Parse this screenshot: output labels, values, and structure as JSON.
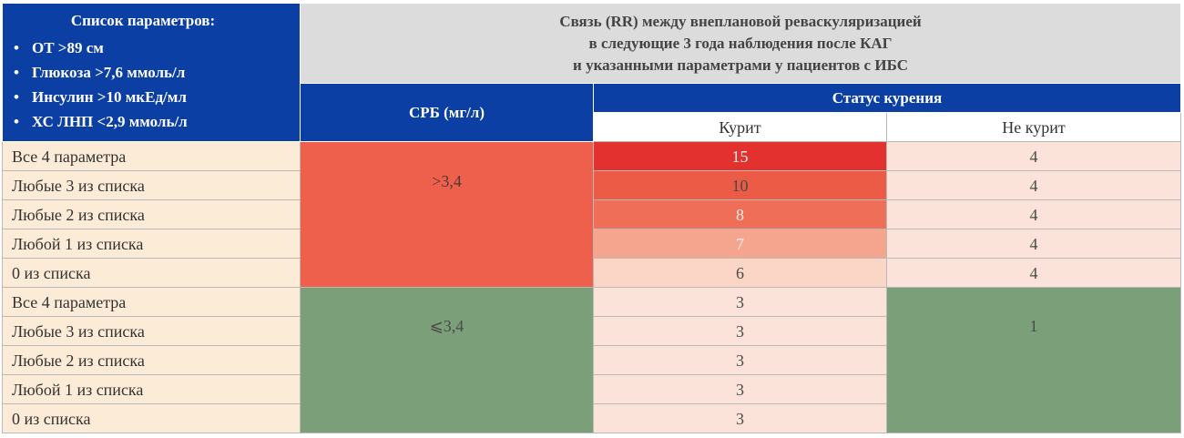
{
  "params_box": {
    "title": "Список параметров:",
    "items": [
      "ОТ >89 см",
      "Глюкоза >7,6 ммоль/л",
      "Инсулин >10 мкЕд/мл",
      "ХС ЛНП <2,9 ммоль/л"
    ]
  },
  "header": {
    "lines": [
      "Связь (RR) между внеплановой реваскуляризацией",
      "в следующие 3 года наблюдения после КАГ",
      "и указанными параметрами у пациентов с ИБС"
    ],
    "crp_col": "СРБ (мг/л)",
    "smoking_col": "Статус курения",
    "smokes": "Курит",
    "no_smoke": "Не курит"
  },
  "row_labels": [
    "Все 4 параметра",
    "Любые 3 из списка",
    "Любые 2 из списка",
    "Любой 1 из списка",
    "0 из списка",
    "Все 4 параметра",
    "Любые 3 из списка",
    "Любые 2 из списка",
    "Любой 1 из списка",
    "0 из списка"
  ],
  "groups": {
    "high": {
      "crp": ">3,4",
      "smokes": [
        "15",
        "10",
        "8",
        "7",
        "6"
      ],
      "no_smoke": [
        "4",
        "4",
        "4",
        "4",
        "4"
      ]
    },
    "low": {
      "crp": "⩽3,4",
      "smokes": [
        "3",
        "3",
        "3",
        "3",
        "3"
      ],
      "no_smoke": "1"
    }
  },
  "colors": {
    "header_blue": "#0b3fa3",
    "header_gray": "#dcdcdc",
    "label_beige": "#fcebd6",
    "crp_high": "#ef604c",
    "crp_low": "#7b9f79",
    "rr_15": "#e2312f",
    "rr_10": "#ec5b45",
    "rr_8": "#ef6e58",
    "rr_7": "#f5a48d",
    "rr_6": "#fbd5c6",
    "rr_light": "#fbe3da"
  }
}
